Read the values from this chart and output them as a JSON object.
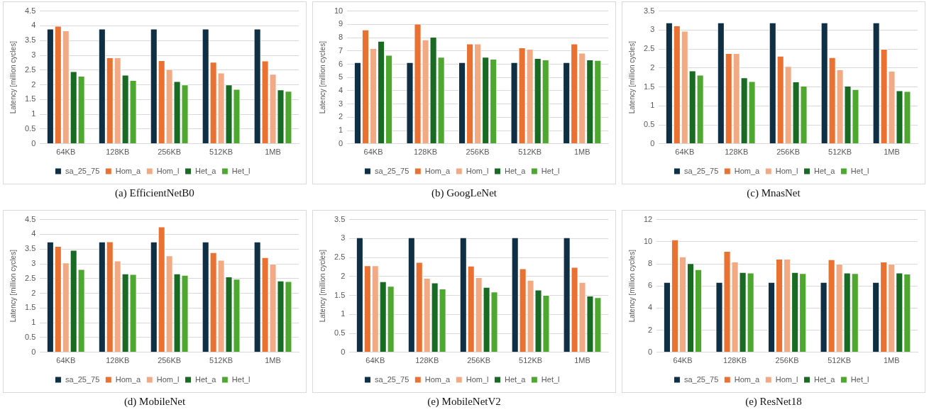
{
  "chart_data": [
    {
      "type": "bar",
      "title": "(a) EfficientNetB0",
      "ylabel": "Latency [million cycles]",
      "categories": [
        "64KB",
        "128KB",
        "256KB",
        "512KB",
        "1MB"
      ],
      "ylim": [
        0,
        4.5
      ],
      "yticks": [
        0,
        0.5,
        1,
        1.5,
        2,
        2.5,
        3,
        3.5,
        4,
        4.5
      ],
      "grid": "y",
      "legend": "bottom",
      "series": [
        {
          "name": "sa_25_75",
          "color": "#0e2f44",
          "values": [
            3.9,
            3.9,
            3.9,
            3.9,
            3.9
          ]
        },
        {
          "name": "Hom_a",
          "color": "#e97132",
          "values": [
            4.0,
            2.93,
            2.83,
            2.78,
            2.82
          ]
        },
        {
          "name": "Hom_l",
          "color": "#f2aa84",
          "values": [
            3.84,
            2.93,
            2.53,
            2.41,
            2.37
          ]
        },
        {
          "name": "Het_a",
          "color": "#196b24",
          "values": [
            2.46,
            2.34,
            2.12,
            2.01,
            1.84
          ]
        },
        {
          "name": "Het_l",
          "color": "#4ea72e",
          "values": [
            2.3,
            2.16,
            2.01,
            1.86,
            1.79
          ]
        }
      ]
    },
    {
      "type": "bar",
      "title": "(b) GoogLeNet",
      "ylabel": "Latency [million cycles]",
      "categories": [
        "64KB",
        "128KB",
        "256KB",
        "512KB",
        "1MB"
      ],
      "ylim": [
        0,
        10
      ],
      "yticks": [
        0,
        1,
        2,
        3,
        4,
        5,
        6,
        7,
        8,
        9,
        10
      ],
      "grid": "y",
      "legend": "bottom",
      "series": [
        {
          "name": "sa_25_75",
          "color": "#0e2f44",
          "values": [
            6.15,
            6.15,
            6.15,
            6.15,
            6.15
          ]
        },
        {
          "name": "Hom_a",
          "color": "#e97132",
          "values": [
            8.6,
            9.05,
            7.55,
            7.25,
            7.55
          ]
        },
        {
          "name": "Hom_l",
          "color": "#f2aa84",
          "values": [
            7.2,
            7.85,
            7.55,
            7.15,
            6.85
          ]
        },
        {
          "name": "Het_a",
          "color": "#196b24",
          "values": [
            7.75,
            8.05,
            6.55,
            6.45,
            6.35
          ]
        },
        {
          "name": "Het_l",
          "color": "#4ea72e",
          "values": [
            6.7,
            6.55,
            6.4,
            6.35,
            6.3
          ]
        }
      ]
    },
    {
      "type": "bar",
      "title": "(c) MnasNet",
      "ylabel": "Latency [million cycles]",
      "categories": [
        "64KB",
        "128KB",
        "256KB",
        "512KB",
        "1MB"
      ],
      "ylim": [
        0,
        3.5
      ],
      "yticks": [
        0,
        0.5,
        1,
        1.5,
        2,
        2.5,
        3,
        3.5
      ],
      "grid": "y",
      "legend": "bottom",
      "series": [
        {
          "name": "sa_25_75",
          "color": "#0e2f44",
          "values": [
            3.2,
            3.2,
            3.2,
            3.2,
            3.2
          ]
        },
        {
          "name": "Hom_a",
          "color": "#e97132",
          "values": [
            3.12,
            2.39,
            2.32,
            2.28,
            2.5
          ]
        },
        {
          "name": "Hom_l",
          "color": "#f2aa84",
          "values": [
            2.98,
            2.39,
            2.05,
            1.96,
            1.92
          ]
        },
        {
          "name": "Het_a",
          "color": "#196b24",
          "values": [
            1.93,
            1.75,
            1.64,
            1.53,
            1.41
          ]
        },
        {
          "name": "Het_l",
          "color": "#4ea72e",
          "values": [
            1.82,
            1.65,
            1.53,
            1.44,
            1.39
          ]
        }
      ]
    },
    {
      "type": "bar",
      "title": "(d) MobileNet",
      "ylabel": "Latency [million cycles]",
      "categories": [
        "64KB",
        "128KB",
        "256KB",
        "512KB",
        "1MB"
      ],
      "ylim": [
        0,
        4.5
      ],
      "yticks": [
        0,
        0.5,
        1,
        1.5,
        2,
        2.5,
        3,
        3.5,
        4,
        4.5
      ],
      "grid": "y",
      "legend": "bottom",
      "series": [
        {
          "name": "sa_25_75",
          "color": "#0e2f44",
          "values": [
            3.75,
            3.75,
            3.75,
            3.75,
            3.75
          ]
        },
        {
          "name": "Hom_a",
          "color": "#e97132",
          "values": [
            3.6,
            3.76,
            4.26,
            3.39,
            3.22
          ]
        },
        {
          "name": "Hom_l",
          "color": "#f2aa84",
          "values": [
            3.04,
            3.11,
            3.28,
            3.13,
            3.0
          ]
        },
        {
          "name": "Het_a",
          "color": "#196b24",
          "values": [
            3.47,
            2.67,
            2.67,
            2.57,
            2.43
          ]
        },
        {
          "name": "Het_l",
          "color": "#4ea72e",
          "values": [
            2.82,
            2.65,
            2.62,
            2.49,
            2.41
          ]
        }
      ]
    },
    {
      "type": "bar",
      "title": "(e) MobileNetV2",
      "ylabel": "Latency [million cycles]",
      "categories": [
        "64KB",
        "128KB",
        "256KB",
        "512KB",
        "1MB"
      ],
      "ylim": [
        0,
        3.5
      ],
      "yticks": [
        0,
        0.5,
        1,
        1.5,
        2,
        2.5,
        3,
        3.5
      ],
      "grid": "y",
      "legend": "bottom",
      "series": [
        {
          "name": "sa_25_75",
          "color": "#0e2f44",
          "values": [
            3.03,
            3.03,
            3.03,
            3.03,
            3.03
          ]
        },
        {
          "name": "Hom_a",
          "color": "#e97132",
          "values": [
            2.29,
            2.38,
            2.28,
            2.21,
            2.25
          ]
        },
        {
          "name": "Hom_l",
          "color": "#f2aa84",
          "values": [
            2.29,
            1.96,
            1.98,
            1.91,
            1.85
          ]
        },
        {
          "name": "Het_a",
          "color": "#196b24",
          "values": [
            1.87,
            1.84,
            1.72,
            1.65,
            1.49
          ]
        },
        {
          "name": "Het_l",
          "color": "#4ea72e",
          "values": [
            1.75,
            1.68,
            1.6,
            1.51,
            1.45
          ]
        }
      ]
    },
    {
      "type": "bar",
      "title": "(e) ResNet18",
      "ylabel": "Latency [million cycles]",
      "categories": [
        "64KB",
        "128KB",
        "256KB",
        "512KB",
        "1MB"
      ],
      "ylim": [
        0,
        12
      ],
      "yticks": [
        0,
        2,
        4,
        6,
        8,
        10,
        12
      ],
      "grid": "y",
      "legend": "bottom",
      "series": [
        {
          "name": "sa_25_75",
          "color": "#0e2f44",
          "values": [
            6.35,
            6.35,
            6.35,
            6.35,
            6.35
          ]
        },
        {
          "name": "Hom_a",
          "color": "#e97132",
          "values": [
            10.2,
            9.15,
            8.45,
            8.4,
            8.2
          ]
        },
        {
          "name": "Hom_l",
          "color": "#f2aa84",
          "values": [
            8.65,
            8.2,
            8.45,
            8.0,
            8.0
          ]
        },
        {
          "name": "Het_a",
          "color": "#196b24",
          "values": [
            8.05,
            7.25,
            7.25,
            7.2,
            7.2
          ]
        },
        {
          "name": "Het_l",
          "color": "#4ea72e",
          "values": [
            7.5,
            7.2,
            7.15,
            7.15,
            7.1
          ]
        }
      ]
    }
  ]
}
